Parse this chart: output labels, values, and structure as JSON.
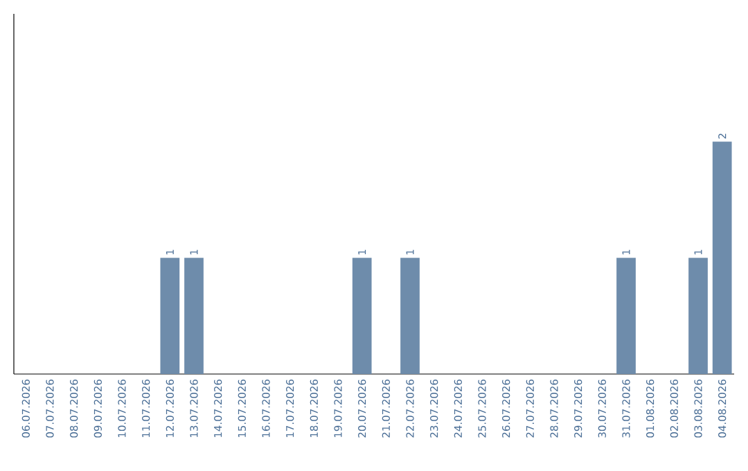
{
  "chart_data": {
    "type": "bar",
    "categories": [
      "06.07.2026",
      "07.07.2026",
      "08.07.2026",
      "09.07.2026",
      "10.07.2026",
      "11.07.2026",
      "12.07.2026",
      "13.07.2026",
      "14.07.2026",
      "15.07.2026",
      "16.07.2026",
      "17.07.2026",
      "18.07.2026",
      "19.07.2026",
      "20.07.2026",
      "21.07.2026",
      "22.07.2026",
      "23.07.2026",
      "24.07.2026",
      "25.07.2026",
      "26.07.2026",
      "27.07.2026",
      "28.07.2026",
      "29.07.2026",
      "30.07.2026",
      "31.07.2026",
      "01.08.2026",
      "02.08.2026",
      "03.08.2026",
      "04.08.2026"
    ],
    "values": [
      0,
      0,
      0,
      0,
      0,
      0,
      1,
      1,
      0,
      0,
      0,
      0,
      0,
      0,
      1,
      0,
      1,
      0,
      0,
      0,
      0,
      0,
      0,
      0,
      0,
      1,
      0,
      0,
      1,
      2
    ],
    "value_labels": [
      null,
      null,
      null,
      null,
      null,
      null,
      "1",
      "1",
      null,
      null,
      null,
      null,
      null,
      null,
      "1",
      null,
      "1",
      null,
      null,
      null,
      null,
      null,
      null,
      null,
      null,
      "1",
      null,
      null,
      "1",
      "2"
    ],
    "color": "#6e8cab",
    "ylim": [
      0,
      3.1
    ],
    "tick_labels": "x"
  }
}
